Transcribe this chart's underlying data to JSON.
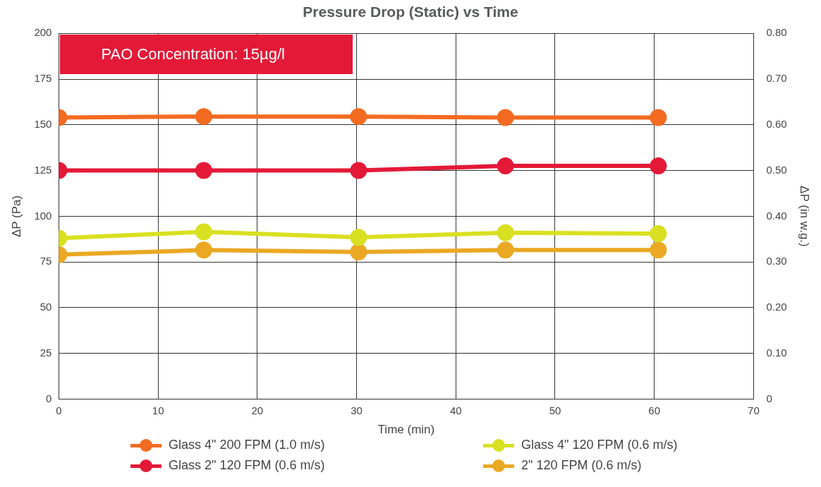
{
  "chart_data": {
    "type": "line",
    "title": "Pressure Drop (Static) vs Time",
    "xlabel": "Time (min)",
    "ylabel": "ΔP (Pa)",
    "y2label": "ΔP (in w.g.)",
    "annotations": [
      "PAO Concentration: 15µg/l"
    ],
    "x": [
      0,
      14.6,
      30.2,
      45,
      60.4
    ],
    "series": [
      {
        "name": "Glass 4\" 200 FPM (1.0 m/s)",
        "color": "#f26b21",
        "values": [
          154,
          154.5,
          154.5,
          154,
          154
        ]
      },
      {
        "name": "Glass 4\" 120 FPM (0.6 m/s)",
        "color": "#d9e021",
        "values": [
          88,
          91.5,
          88.5,
          91,
          90.5
        ]
      },
      {
        "name": "Glass 2\" 120 FPM (0.6 m/s)",
        "color": "#e31937",
        "values": [
          125,
          125,
          125,
          127.5,
          127.5
        ]
      },
      {
        "name": "2\" 120 FPM (0.6 m/s)",
        "color": "#eaa823",
        "values": [
          79,
          81.5,
          80.5,
          81.5,
          81.5
        ]
      }
    ],
    "xlim": [
      0,
      70
    ],
    "xticks": [
      0,
      10,
      20,
      30,
      40,
      50,
      60,
      70
    ],
    "ylim": [
      0,
      200
    ],
    "yticks": [
      0,
      25,
      50,
      75,
      100,
      125,
      150,
      175,
      200
    ],
    "y2lim": [
      0,
      0.8
    ],
    "y2ticks": [
      0,
      {
        "value": 0.1,
        "label": "0.10"
      },
      {
        "value": 0.2,
        "label": "0.20"
      },
      {
        "value": 0.3,
        "label": "0.30"
      },
      {
        "value": 0.4,
        "label": "0.40"
      },
      {
        "value": 0.5,
        "label": "0.50"
      },
      {
        "value": 0.6,
        "label": "0.60"
      },
      {
        "value": 0.7,
        "label": "0.70"
      },
      {
        "value": 0.8,
        "label": "0.80"
      }
    ],
    "grid": true,
    "legend": "bottom",
    "marker": "circle",
    "line_style": "solid"
  }
}
